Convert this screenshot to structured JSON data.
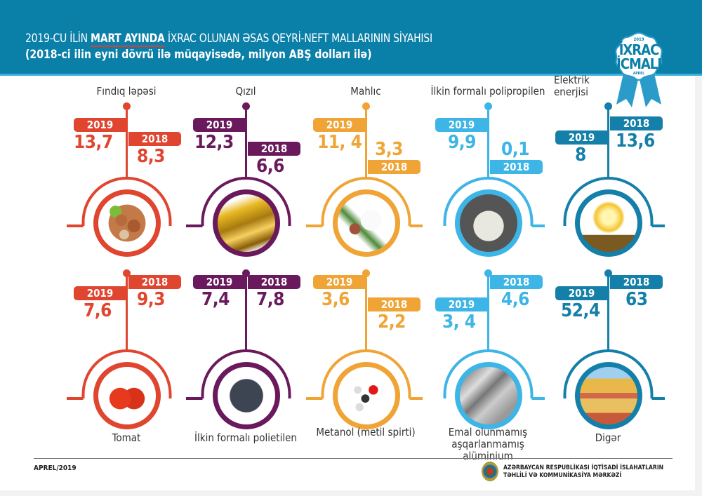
{
  "header": {
    "title_prefix": "2019-CU İLİN ",
    "title_bold": "MART AYINDA",
    "title_suffix": " İXRAC OLUNAN ƏSAS QEYRİ-NEFT MALLARININ SİYAHISI",
    "subtitle": "(2018-ci ilin eyni dövrü ilə müqayisədə, milyon ABŞ dolları ilə)"
  },
  "badge": {
    "year": "2019",
    "line1": "İXRAC",
    "line2": "İCMALI",
    "month": "APREL"
  },
  "colors": {
    "red": "#e0452f",
    "purple": "#6a1a5c",
    "orange": "#f0a435",
    "lightblue": "#3db5e6",
    "blue": "#147fa8",
    "header": "#0a7fa8"
  },
  "items": [
    {
      "name": "Fındıq ləpəsi",
      "v2019": "13,7",
      "v2018": "8,3",
      "image": "hazelnut"
    },
    {
      "name": "Qızıl",
      "v2019": "12,3",
      "v2018": "6,6",
      "image": "gold"
    },
    {
      "name": "Mahlıc",
      "v2019": "11, 4",
      "v2018": "3,3",
      "image": "cotton"
    },
    {
      "name": "İlkin formalı polipropilen",
      "v2019": "9,9",
      "v2018": "0,1",
      "image": "polypropylene"
    },
    {
      "name": "Elektrik enerjisi",
      "v2019": "8",
      "v2018": "13,6",
      "image": "lightbulb"
    },
    {
      "name": "Tomat",
      "v2019": "7,6",
      "v2018": "9,3",
      "image": "tomato"
    },
    {
      "name": "İlkin formalı polietilen",
      "v2019": "7,4",
      "v2018": "7,8",
      "image": "polyethylene"
    },
    {
      "name": "Metanol (metil spirti)",
      "v2019": "3,6",
      "v2018": "2,2",
      "image": "methanol"
    },
    {
      "name": "Emal olunmamış aşqarlanmamış alüminium",
      "v2019": "3, 4",
      "v2018": "4,6",
      "image": "aluminium"
    },
    {
      "name": "Digər",
      "v2019": "52,4",
      "v2018": "63",
      "image": "containers"
    }
  ],
  "year_labels": {
    "y2019": "2019",
    "y2018": "2018"
  },
  "footer": {
    "date": "APREL/2019",
    "org_line1": "AZƏRBAYCAN RESPUBLİKASI İQTİSADİ İSLAHATLARIN",
    "org_line2": "TƏHLİLİ VƏ KOMMUNİKASİYA MƏRKƏZİ"
  }
}
